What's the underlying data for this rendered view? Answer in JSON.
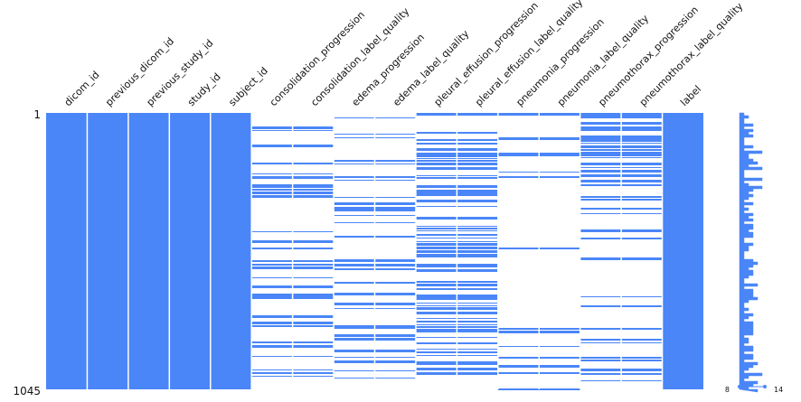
{
  "chart_data": {
    "type": "heatmap",
    "subtype": "missingness-matrix",
    "columns": [
      "dicom_id",
      "previous_dicom_id",
      "previous_study_id",
      "study_id",
      "subject_id",
      "consolidation_progression",
      "consolidation_label_quality",
      "edema_progression",
      "edema_label_quality",
      "pleural_effusion_progression",
      "pleural_effusion_label_quality",
      "pneumonia_progression",
      "pneumonia_label_quality",
      "pneumothorax_progression",
      "pneumothorax_label_quality",
      "label"
    ],
    "row_count": 1045,
    "y_tick_labels": [
      "1",
      "1045"
    ],
    "bands": [
      {
        "columns": [
          "dicom_id",
          "previous_dicom_id",
          "previous_study_id",
          "study_id",
          "subject_id",
          "label"
        ],
        "completeness": 1.0
      },
      {
        "columns": [
          "consolidation_progression",
          "consolidation_label_quality"
        ],
        "completeness": 0.3,
        "dense_range": [
          0.25,
          0.3
        ]
      },
      {
        "columns": [
          "edema_progression",
          "edema_label_quality"
        ],
        "completeness": 0.33,
        "empty_range": [
          0.25,
          0.3
        ]
      },
      {
        "columns": [
          "pleural_effusion_progression",
          "pleural_effusion_label_quality"
        ],
        "completeness": 0.62
      },
      {
        "columns": [
          "pneumonia_progression",
          "pneumonia_label_quality"
        ],
        "completeness": 0.22
      },
      {
        "columns": [
          "pneumothorax_progression",
          "pneumothorax_label_quality"
        ],
        "completeness": 0.3,
        "dense_range": [
          0.0,
          0.25
        ]
      }
    ],
    "sparkline": {
      "min": 8,
      "max": 14,
      "min_label": "8",
      "max_label": "14"
    },
    "color": "#4a86f7"
  }
}
